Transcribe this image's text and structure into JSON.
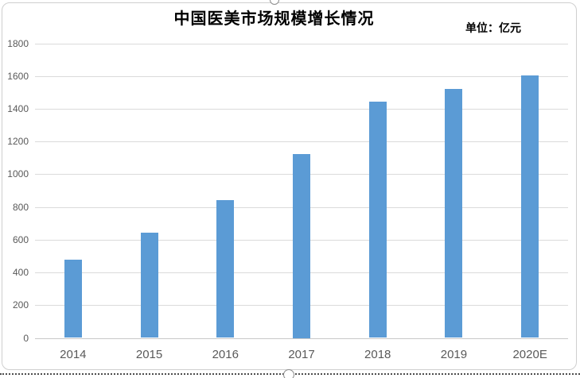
{
  "chart": {
    "title": "中国医美市场规模增长情况",
    "unit_label": "单位：亿元"
  },
  "chart_data": {
    "type": "bar",
    "title": "中国医美市场规模增长情况",
    "unit": "亿元",
    "categories": [
      "2014",
      "2015",
      "2016",
      "2017",
      "2018",
      "2019",
      "2020E"
    ],
    "values": [
      480,
      645,
      840,
      1125,
      1445,
      1520,
      1605
    ],
    "xlabel": "",
    "ylabel": "",
    "ylim": [
      0,
      1800
    ],
    "yticks": [
      0,
      200,
      400,
      600,
      800,
      1000,
      1200,
      1400,
      1600,
      1800
    ],
    "grid": true,
    "legend": false,
    "bar_color": "#5B9BD5",
    "gridline_color": "#DBDBDB",
    "axis_label_color": "#595959"
  }
}
